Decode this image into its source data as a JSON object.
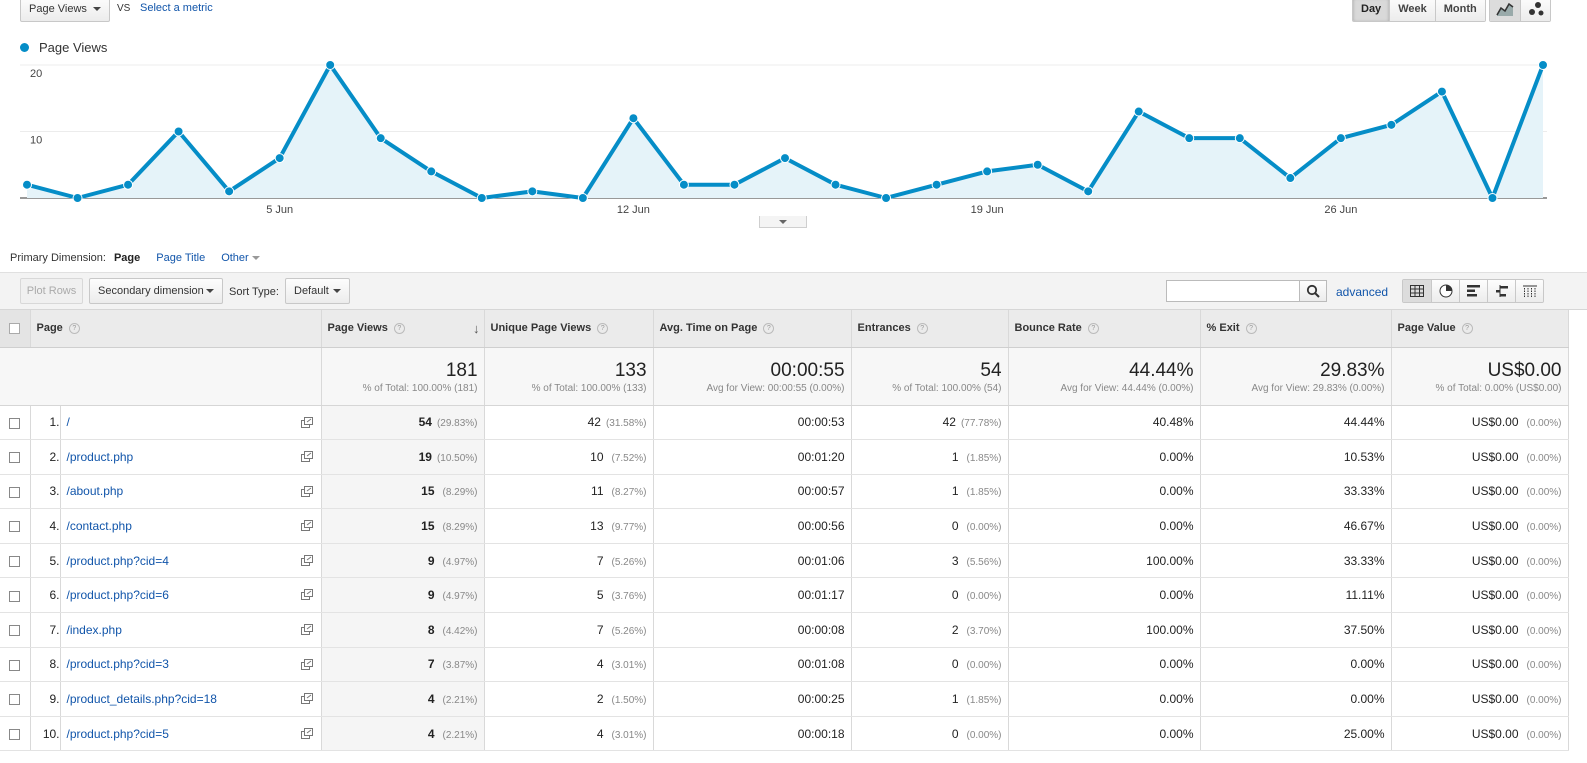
{
  "top": {
    "metric_select": "Page Views",
    "vs": "VS",
    "select_metric": "Select a metric",
    "granularity": [
      "Day",
      "Week",
      "Month"
    ],
    "granularity_active": "Day"
  },
  "chart_data": {
    "type": "area",
    "legend": "Page Views",
    "color": "#058dc7",
    "ylim": [
      0,
      20
    ],
    "yticks": [
      "20",
      "10"
    ],
    "xtick_labels": [
      {
        "label": "5 Jun",
        "index": 5
      },
      {
        "label": "12 Jun",
        "index": 12
      },
      {
        "label": "19 Jun",
        "index": 19
      },
      {
        "label": "26 Jun",
        "index": 26
      }
    ],
    "values": [
      2,
      0,
      2,
      10,
      1,
      6,
      20,
      9,
      4,
      0,
      1,
      0,
      12,
      2,
      2,
      6,
      2,
      0,
      2,
      4,
      5,
      1,
      13,
      9,
      9,
      3,
      9,
      11,
      16,
      0,
      20
    ]
  },
  "dimension": {
    "label": "Primary Dimension:",
    "current": "Page",
    "options": [
      "Page Title",
      "Other"
    ]
  },
  "toolbar": {
    "plot_rows": "Plot Rows",
    "secondary_dimension": "Secondary dimension",
    "sort_type_label": "Sort Type:",
    "sort_type_value": "Default",
    "advanced": "advanced"
  },
  "table": {
    "columns": [
      "Page",
      "Page Views",
      "Unique Page Views",
      "Avg. Time on Page",
      "Entrances",
      "Bounce Rate",
      "% Exit",
      "Page Value"
    ],
    "totals": [
      {
        "big": "181",
        "sub": "% of Total: 100.00% (181)"
      },
      {
        "big": "133",
        "sub": "% of Total: 100.00% (133)"
      },
      {
        "big": "00:00:55",
        "sub": "Avg for View: 00:00:55 (0.00%)"
      },
      {
        "big": "54",
        "sub": "% of Total: 100.00% (54)"
      },
      {
        "big": "44.44%",
        "sub": "Avg for View: 44.44% (0.00%)"
      },
      {
        "big": "29.83%",
        "sub": "Avg for View: 29.83% (0.00%)"
      },
      {
        "big": "US$0.00",
        "sub": "% of Total: 0.00% (US$0.00)"
      }
    ],
    "rows": [
      {
        "idx": "1.",
        "page": "/",
        "pv": "54",
        "pv_pct": "(29.83%)",
        "upv": "42",
        "upv_pct": "(31.58%)",
        "time": "00:00:53",
        "ent": "42",
        "ent_pct": "(77.78%)",
        "bounce": "40.48%",
        "exit": "44.44%",
        "value": "US$0.00",
        "value_pct": "(0.00%)"
      },
      {
        "idx": "2.",
        "page": "/product.php",
        "pv": "19",
        "pv_pct": "(10.50%)",
        "upv": "10",
        "upv_pct": "(7.52%)",
        "time": "00:01:20",
        "ent": "1",
        "ent_pct": "(1.85%)",
        "bounce": "0.00%",
        "exit": "10.53%",
        "value": "US$0.00",
        "value_pct": "(0.00%)"
      },
      {
        "idx": "3.",
        "page": "/about.php",
        "pv": "15",
        "pv_pct": "(8.29%)",
        "upv": "11",
        "upv_pct": "(8.27%)",
        "time": "00:00:57",
        "ent": "1",
        "ent_pct": "(1.85%)",
        "bounce": "0.00%",
        "exit": "33.33%",
        "value": "US$0.00",
        "value_pct": "(0.00%)"
      },
      {
        "idx": "4.",
        "page": "/contact.php",
        "pv": "15",
        "pv_pct": "(8.29%)",
        "upv": "13",
        "upv_pct": "(9.77%)",
        "time": "00:00:56",
        "ent": "0",
        "ent_pct": "(0.00%)",
        "bounce": "0.00%",
        "exit": "46.67%",
        "value": "US$0.00",
        "value_pct": "(0.00%)"
      },
      {
        "idx": "5.",
        "page": "/product.php?cid=4",
        "pv": "9",
        "pv_pct": "(4.97%)",
        "upv": "7",
        "upv_pct": "(5.26%)",
        "time": "00:01:06",
        "ent": "3",
        "ent_pct": "(5.56%)",
        "bounce": "100.00%",
        "exit": "33.33%",
        "value": "US$0.00",
        "value_pct": "(0.00%)"
      },
      {
        "idx": "6.",
        "page": "/product.php?cid=6",
        "pv": "9",
        "pv_pct": "(4.97%)",
        "upv": "5",
        "upv_pct": "(3.76%)",
        "time": "00:01:17",
        "ent": "0",
        "ent_pct": "(0.00%)",
        "bounce": "0.00%",
        "exit": "11.11%",
        "value": "US$0.00",
        "value_pct": "(0.00%)"
      },
      {
        "idx": "7.",
        "page": "/index.php",
        "pv": "8",
        "pv_pct": "(4.42%)",
        "upv": "7",
        "upv_pct": "(5.26%)",
        "time": "00:00:08",
        "ent": "2",
        "ent_pct": "(3.70%)",
        "bounce": "100.00%",
        "exit": "37.50%",
        "value": "US$0.00",
        "value_pct": "(0.00%)"
      },
      {
        "idx": "8.",
        "page": "/product.php?cid=3",
        "pv": "7",
        "pv_pct": "(3.87%)",
        "upv": "4",
        "upv_pct": "(3.01%)",
        "time": "00:01:08",
        "ent": "0",
        "ent_pct": "(0.00%)",
        "bounce": "0.00%",
        "exit": "0.00%",
        "value": "US$0.00",
        "value_pct": "(0.00%)"
      },
      {
        "idx": "9.",
        "page": "/product_details.php?cid=18",
        "pv": "4",
        "pv_pct": "(2.21%)",
        "upv": "2",
        "upv_pct": "(1.50%)",
        "time": "00:00:25",
        "ent": "1",
        "ent_pct": "(1.85%)",
        "bounce": "0.00%",
        "exit": "0.00%",
        "value": "US$0.00",
        "value_pct": "(0.00%)"
      },
      {
        "idx": "10.",
        "page": "/product.php?cid=5",
        "pv": "4",
        "pv_pct": "(2.21%)",
        "upv": "4",
        "upv_pct": "(3.01%)",
        "time": "00:00:18",
        "ent": "0",
        "ent_pct": "(0.00%)",
        "bounce": "0.00%",
        "exit": "25.00%",
        "value": "US$0.00",
        "value_pct": "(0.00%)"
      }
    ]
  }
}
